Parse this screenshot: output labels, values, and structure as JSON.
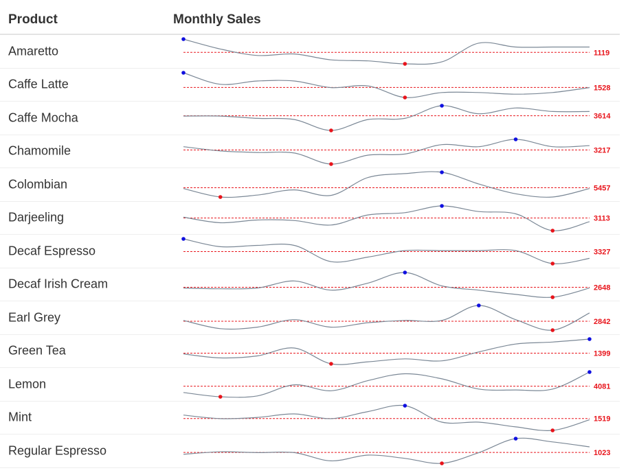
{
  "header": {
    "product": "Product",
    "monthly_sales": "Monthly Sales"
  },
  "colors": {
    "line": "#7a8795",
    "mean": "#e8141b",
    "max": "#1010e0",
    "min": "#e8141b",
    "label": "#e8141b"
  },
  "chart_data": {
    "type": "sparkline-table",
    "x": [
      "1",
      "2",
      "3",
      "4",
      "5",
      "6",
      "7",
      "8",
      "9",
      "10",
      "11",
      "12"
    ],
    "series": [
      {
        "name": "Amaretto",
        "label": "1119",
        "values": [
          1280,
          1180,
          1115,
          1130,
          1070,
          1060,
          1030,
          1050,
          1240,
          1200,
          1200,
          1200
        ]
      },
      {
        "name": "Caffe Latte",
        "label": "1528",
        "values": [
          1700,
          1560,
          1600,
          1600,
          1520,
          1540,
          1400,
          1460,
          1460,
          1440,
          1460,
          1520
        ]
      },
      {
        "name": "Caffe Mocha",
        "label": "3614",
        "values": [
          3600,
          3600,
          3560,
          3540,
          3350,
          3540,
          3560,
          3780,
          3640,
          3740,
          3680,
          3680
        ]
      },
      {
        "name": "Chamomile",
        "label": "3217",
        "values": [
          3260,
          3180,
          3150,
          3140,
          2930,
          3100,
          3120,
          3300,
          3260,
          3400,
          3260,
          3280
        ]
      },
      {
        "name": "Colombian",
        "label": "5457",
        "values": [
          5460,
          5200,
          5260,
          5420,
          5250,
          5800,
          5920,
          5960,
          5600,
          5300,
          5200,
          5460
        ]
      },
      {
        "name": "Darjeeling",
        "label": "3113",
        "values": [
          3120,
          3020,
          3070,
          3060,
          2980,
          3160,
          3200,
          3320,
          3220,
          3180,
          2880,
          3040
        ]
      },
      {
        "name": "Decaf Espresso",
        "label": "3327",
        "values": [
          3500,
          3380,
          3400,
          3400,
          3150,
          3220,
          3320,
          3320,
          3320,
          3320,
          3120,
          3200
        ]
      },
      {
        "name": "Decaf Irish Cream",
        "label": "2648",
        "values": [
          2650,
          2640,
          2650,
          2750,
          2620,
          2720,
          2870,
          2680,
          2620,
          2560,
          2520,
          2650
        ]
      },
      {
        "name": "Earl Grey",
        "label": "2842",
        "values": [
          2850,
          2740,
          2760,
          2860,
          2760,
          2820,
          2850,
          2850,
          3050,
          2860,
          2720,
          2950
        ]
      },
      {
        "name": "Green Tea",
        "label": "1399",
        "values": [
          1380,
          1340,
          1360,
          1440,
          1280,
          1300,
          1330,
          1310,
          1400,
          1480,
          1500,
          1530
        ]
      },
      {
        "name": "Lemon",
        "label": "4081",
        "values": [
          3960,
          3910,
          3920,
          4050,
          3980,
          4100,
          4180,
          4120,
          4000,
          3990,
          4000,
          4200
        ]
      },
      {
        "name": "Mint",
        "label": "1519",
        "values": [
          1540,
          1510,
          1520,
          1550,
          1510,
          1570,
          1620,
          1480,
          1480,
          1440,
          1410,
          1500
        ]
      },
      {
        "name": "Regular Espresso",
        "label": "1023",
        "values": [
          1010,
          1040,
          1030,
          1030,
          930,
          1000,
          960,
          900,
          1030,
          1200,
          1160,
          1100
        ]
      }
    ]
  }
}
